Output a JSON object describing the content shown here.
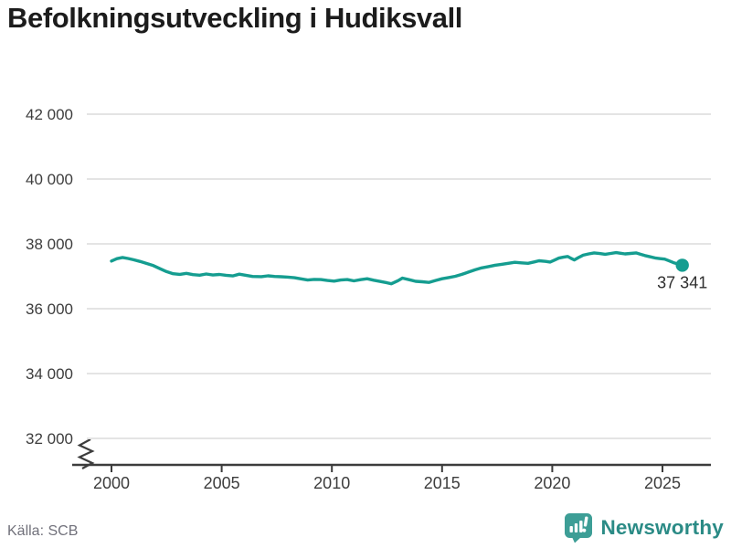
{
  "header": {
    "title": "Befolkningsutveckling i Hudiksvall"
  },
  "chart_data": {
    "type": "line",
    "title": "Befolkningsutveckling i Hudiksvall",
    "xlabel": "",
    "ylabel": "",
    "x_tick_values": [
      2000,
      2005,
      2010,
      2015,
      2020,
      2025
    ],
    "x_tick_labels": [
      "2000",
      "2005",
      "2010",
      "2015",
      "2020",
      "2025"
    ],
    "y_tick_values": [
      42000,
      40000,
      38000,
      36000,
      34000,
      32000
    ],
    "y_tick_labels": [
      "42 000",
      "40 000",
      "38 000",
      "36 000",
      "34 000",
      "32 000"
    ],
    "xlim": [
      2000,
      2026
    ],
    "ylim": [
      32000,
      42000
    ],
    "y_axis_break": true,
    "grid": "horizontal",
    "legend": "none",
    "line_color": "#159d90",
    "end_point_value": 37341,
    "end_point_label": "37 341",
    "series": [
      {
        "name": "Befolkning i Hudiksvall",
        "points": [
          [
            2000.0,
            37470
          ],
          [
            2000.25,
            37545
          ],
          [
            2000.5,
            37580
          ],
          [
            2000.75,
            37550
          ],
          [
            2001.0,
            37510
          ],
          [
            2001.3,
            37455
          ],
          [
            2001.6,
            37395
          ],
          [
            2001.9,
            37330
          ],
          [
            2002.2,
            37235
          ],
          [
            2002.5,
            37145
          ],
          [
            2002.8,
            37080
          ],
          [
            2003.1,
            37060
          ],
          [
            2003.4,
            37090
          ],
          [
            2003.7,
            37050
          ],
          [
            2004.0,
            37035
          ],
          [
            2004.3,
            37070
          ],
          [
            2004.6,
            37040
          ],
          [
            2004.9,
            37055
          ],
          [
            2005.2,
            37030
          ],
          [
            2005.5,
            37010
          ],
          [
            2005.8,
            37065
          ],
          [
            2006.1,
            37030
          ],
          [
            2006.4,
            36995
          ],
          [
            2006.8,
            36990
          ],
          [
            2007.1,
            37015
          ],
          [
            2007.4,
            36995
          ],
          [
            2007.7,
            36985
          ],
          [
            2008.0,
            36975
          ],
          [
            2008.3,
            36955
          ],
          [
            2008.6,
            36920
          ],
          [
            2008.9,
            36885
          ],
          [
            2009.2,
            36905
          ],
          [
            2009.5,
            36900
          ],
          [
            2009.8,
            36870
          ],
          [
            2010.1,
            36850
          ],
          [
            2010.4,
            36885
          ],
          [
            2010.7,
            36900
          ],
          [
            2011.0,
            36860
          ],
          [
            2011.3,
            36895
          ],
          [
            2011.6,
            36925
          ],
          [
            2011.9,
            36880
          ],
          [
            2012.2,
            36840
          ],
          [
            2012.5,
            36800
          ],
          [
            2012.7,
            36770
          ],
          [
            2013.0,
            36865
          ],
          [
            2013.2,
            36945
          ],
          [
            2013.5,
            36895
          ],
          [
            2013.8,
            36845
          ],
          [
            2014.1,
            36830
          ],
          [
            2014.4,
            36810
          ],
          [
            2014.7,
            36870
          ],
          [
            2015.0,
            36925
          ],
          [
            2015.3,
            36960
          ],
          [
            2015.6,
            37000
          ],
          [
            2015.9,
            37060
          ],
          [
            2016.2,
            37130
          ],
          [
            2016.5,
            37200
          ],
          [
            2016.8,
            37260
          ],
          [
            2017.1,
            37300
          ],
          [
            2017.4,
            37340
          ],
          [
            2017.7,
            37370
          ],
          [
            2018.0,
            37400
          ],
          [
            2018.3,
            37430
          ],
          [
            2018.6,
            37415
          ],
          [
            2018.9,
            37400
          ],
          [
            2019.2,
            37445
          ],
          [
            2019.4,
            37480
          ],
          [
            2019.7,
            37460
          ],
          [
            2019.9,
            37440
          ],
          [
            2020.1,
            37500
          ],
          [
            2020.3,
            37560
          ],
          [
            2020.5,
            37590
          ],
          [
            2020.7,
            37610
          ],
          [
            2020.85,
            37555
          ],
          [
            2021.0,
            37505
          ],
          [
            2021.2,
            37580
          ],
          [
            2021.4,
            37650
          ],
          [
            2021.65,
            37690
          ],
          [
            2021.9,
            37720
          ],
          [
            2022.15,
            37700
          ],
          [
            2022.4,
            37680
          ],
          [
            2022.65,
            37705
          ],
          [
            2022.9,
            37730
          ],
          [
            2023.1,
            37710
          ],
          [
            2023.3,
            37690
          ],
          [
            2023.55,
            37705
          ],
          [
            2023.8,
            37720
          ],
          [
            2024.0,
            37680
          ],
          [
            2024.2,
            37640
          ],
          [
            2024.45,
            37600
          ],
          [
            2024.7,
            37560
          ],
          [
            2024.9,
            37545
          ],
          [
            2025.1,
            37530
          ],
          [
            2025.3,
            37475
          ],
          [
            2025.5,
            37420
          ],
          [
            2025.7,
            37380
          ],
          [
            2025.9,
            37341
          ]
        ]
      }
    ]
  },
  "footer": {
    "source": "Källa: SCB",
    "brand": "Newsworthy"
  },
  "colors": {
    "accent_line": "#159d90",
    "brand_icon": "#3d9e96",
    "brand_text": "#2b8b86",
    "gridline": "#e4e4e4",
    "axis": "#3c3c3c",
    "tick_label": "#3d3d3d",
    "title_text": "#1c1c1c",
    "source_text": "#71717b"
  }
}
